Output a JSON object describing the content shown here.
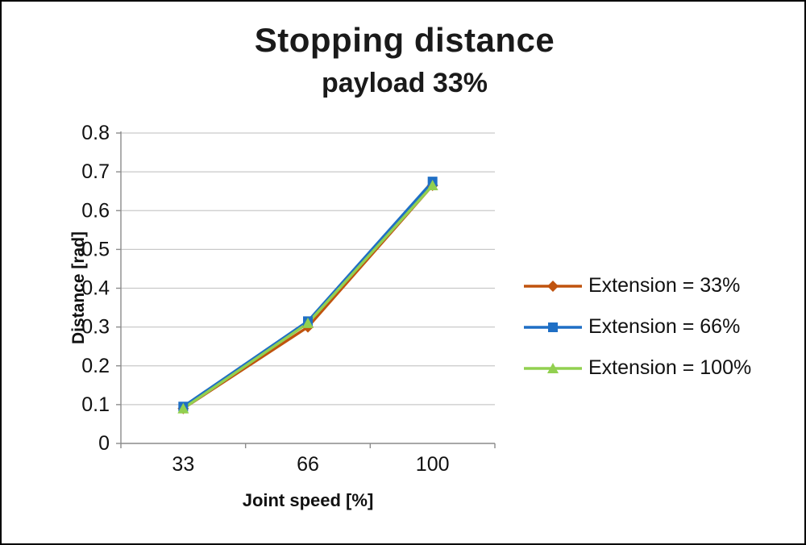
{
  "page": {
    "background": "#ffffff",
    "border_color": "#000000"
  },
  "chart_data": {
    "type": "line",
    "title": "Stopping distance",
    "subtitle": "payload 33%",
    "xlabel": "Joint speed [%]",
    "ylabel": "Distance [rad]",
    "categories": [
      "33",
      "66",
      "100"
    ],
    "ylim": [
      0,
      0.8
    ],
    "ytick_step": 0.1,
    "ytick_labels": [
      "0",
      "0.1",
      "0.2",
      "0.3",
      "0.4",
      "0.5",
      "0.6",
      "0.7",
      "0.8"
    ],
    "grid": true,
    "gridline_color": "#c9c9c9",
    "axis_color": "#8c8c8c",
    "legend_position": "right",
    "series": [
      {
        "name": "Extension = 33%",
        "marker": "diamond",
        "color": "#c0530e",
        "values": [
          0.09,
          0.3,
          0.665
        ]
      },
      {
        "name": "Extension = 66%",
        "marker": "square",
        "color": "#1f6fc5",
        "values": [
          0.095,
          0.315,
          0.675
        ]
      },
      {
        "name": "Extension = 100%",
        "marker": "triangle",
        "color": "#92d050",
        "values": [
          0.09,
          0.31,
          0.665
        ]
      }
    ]
  }
}
